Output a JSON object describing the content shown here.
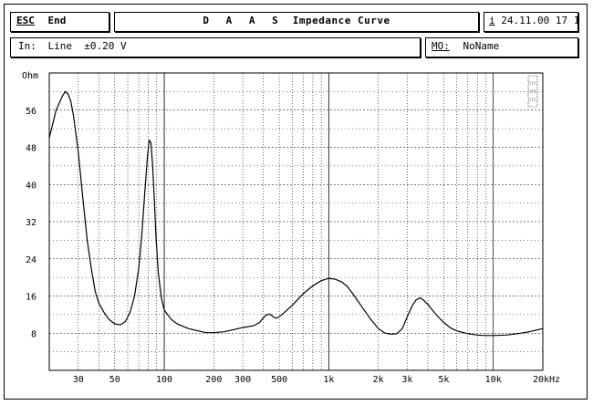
{
  "header": {
    "esc_label": "ESC",
    "end_label": "End",
    "title_prefix": "D A A S",
    "title": "Impedance Curve",
    "info_icon_label": "i",
    "date": "24.11.00",
    "time": "17 13"
  },
  "input_bar": {
    "label": "In:",
    "value": "Line  ±0.20 V"
  },
  "mo_bar": {
    "label": "MO:",
    "value": "NoName"
  },
  "chart_data": {
    "type": "line",
    "title": "Impedance Curve",
    "xlabel": "kHz",
    "ylabel": "Ohm",
    "x_scale": "log",
    "xlim": [
      20,
      20000
    ],
    "ylim": [
      0,
      64
    ],
    "grid": true,
    "y_ticks": [
      8,
      16,
      24,
      32,
      40,
      48,
      56
    ],
    "y_tick_labels": [
      "8",
      "16",
      "24",
      "32",
      "40",
      "48",
      "56"
    ],
    "y_unit_label": "Ohm",
    "x_ticks": [
      30,
      50,
      100,
      200,
      300,
      500,
      1000,
      2000,
      3000,
      5000,
      10000,
      20000
    ],
    "x_tick_labels": [
      "30",
      "50",
      "100",
      "200",
      "300",
      "500",
      "1k",
      "2k",
      "3k",
      "5k",
      "10k",
      "20kHz"
    ],
    "series": [
      {
        "color": "#000000",
        "x": [
          20,
          22,
          24,
          25,
          26,
          27,
          28,
          30,
          32,
          34,
          36,
          38,
          40,
          43,
          46,
          50,
          54,
          58,
          62,
          66,
          70,
          73,
          76,
          79,
          81,
          83,
          85,
          87,
          89,
          92,
          96,
          100,
          110,
          120,
          140,
          160,
          180,
          200,
          230,
          260,
          300,
          350,
          380,
          400,
          420,
          440,
          460,
          480,
          500,
          550,
          600,
          700,
          800,
          900,
          1000,
          1100,
          1200,
          1300,
          1400,
          1600,
          1800,
          2000,
          2200,
          2400,
          2600,
          2800,
          3000,
          3200,
          3400,
          3600,
          3800,
          4000,
          4300,
          4600,
          5000,
          5500,
          6000,
          7000,
          8000,
          9000,
          10000,
          12000,
          14000,
          16000,
          18000,
          20000
        ],
        "y": [
          50,
          56,
          59,
          60,
          59.5,
          58,
          55,
          47,
          37,
          28,
          22,
          17,
          14.5,
          12.5,
          11,
          10,
          9.8,
          10.5,
          12.5,
          16,
          22,
          29,
          38,
          46,
          49.5,
          49,
          44,
          37,
          29,
          21,
          15.5,
          13,
          11,
          10,
          9,
          8.5,
          8.1,
          8.1,
          8.3,
          8.7,
          9.2,
          9.6,
          10.3,
          11.3,
          12,
          12.1,
          11.5,
          11.2,
          11.5,
          12.8,
          14,
          16.5,
          18.2,
          19.3,
          19.8,
          19.6,
          19,
          18,
          16.5,
          13.5,
          11,
          9,
          8,
          7.8,
          7.9,
          9,
          11.5,
          13.8,
          15.2,
          15.6,
          15,
          14.2,
          12.8,
          11.6,
          10.3,
          9.1,
          8.5,
          7.9,
          7.6,
          7.5,
          7.5,
          7.6,
          7.9,
          8.2,
          8.6,
          9
        ]
      }
    ]
  }
}
